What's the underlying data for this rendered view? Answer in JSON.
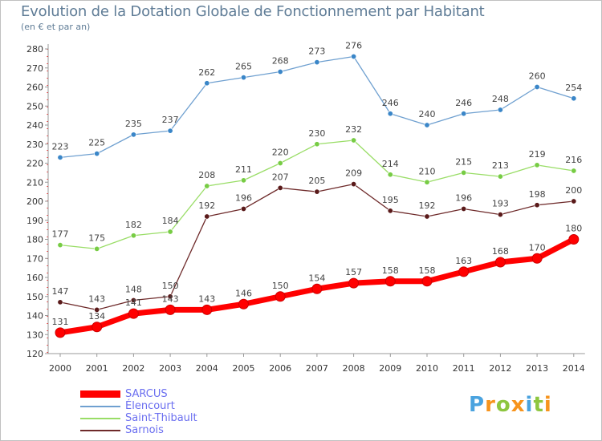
{
  "title": "Evolution de la Dotation Globale de Fonctionnement par Habitant",
  "subtitle": "(en € et par an)",
  "chart_data": {
    "type": "line",
    "x": [
      "2000",
      "2001",
      "2002",
      "2003",
      "2004",
      "2005",
      "2006",
      "2007",
      "2008",
      "2009",
      "2010",
      "2011",
      "2012",
      "2013",
      "2014"
    ],
    "ylim": [
      120,
      280
    ],
    "yticks": [
      120,
      130,
      140,
      150,
      160,
      170,
      180,
      190,
      200,
      210,
      220,
      230,
      240,
      250,
      260,
      270,
      280
    ],
    "grid": false,
    "legend_position": "bottom-left",
    "series": [
      {
        "name": "SARCUS",
        "color": "#ff0000",
        "values": [
          131,
          134,
          141,
          143,
          143,
          146,
          150,
          154,
          157,
          158,
          158,
          163,
          168,
          170,
          180
        ]
      },
      {
        "name": "Élencourt",
        "color": "#6fa0d0",
        "values": [
          223,
          225,
          235,
          237,
          262,
          265,
          268,
          273,
          276,
          246,
          240,
          246,
          248,
          260,
          254
        ]
      },
      {
        "name": "Saint-Thibault",
        "color": "#99dd66",
        "values": [
          177,
          175,
          182,
          184,
          208,
          211,
          220,
          230,
          232,
          214,
          210,
          215,
          213,
          219,
          216
        ]
      },
      {
        "name": "Sarnois",
        "color": "#6e2a2a",
        "values": [
          147,
          143,
          148,
          150,
          192,
          196,
          207,
          205,
          209,
          195,
          192,
          196,
          193,
          198,
          200
        ]
      }
    ]
  },
  "logo": {
    "letters": [
      "P",
      "r",
      "o",
      "x",
      "i",
      "t",
      "i"
    ],
    "colors": [
      "#4aa3df",
      "#f7941d",
      "#8dc63f",
      "#f7941d",
      "#4aa3df",
      "#8dc63f",
      "#f7941d"
    ]
  }
}
